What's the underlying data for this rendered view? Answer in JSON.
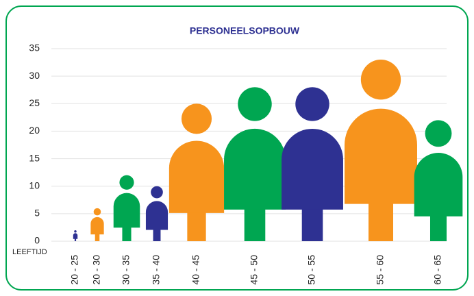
{
  "chart_data": {
    "type": "pictogram",
    "title": "PERSONEELSOPBOUW",
    "x_axis_label": "LEEFTIJD",
    "categories": [
      "20 - 25",
      "20 - 30",
      "30 - 35",
      "35 - 40",
      "40 - 45",
      "45 - 50",
      "50 - 55",
      "55 - 60",
      "60 - 65"
    ],
    "values": [
      2,
      6,
      12,
      10,
      25,
      28,
      28,
      33,
      22
    ],
    "colors": [
      "#2e3192",
      "#f7941d",
      "#00a651",
      "#2e3192",
      "#f7941d",
      "#00a651",
      "#2e3192",
      "#f7941d",
      "#00a651"
    ],
    "ylim": [
      0,
      35
    ],
    "yticks": [
      0,
      5,
      10,
      15,
      20,
      25,
      30,
      35
    ],
    "grid": true
  }
}
